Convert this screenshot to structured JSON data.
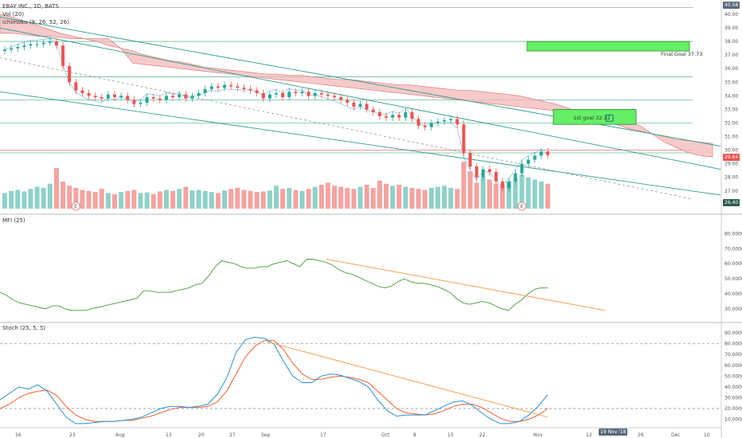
{
  "legend": {
    "symbol": "EBAY INC., 1D, BATS",
    "vol": "Vol (20)",
    "ichimoku": "Ichimoku (9, 26, 52, 26)",
    "mfi": "MFI (25)",
    "stoch": "Stoch (25, 5, 5)"
  },
  "annotations": {
    "final_goal": "Final Goal 37.73",
    "first_goal": "1st goal 32.32"
  },
  "tags": {
    "top_price": "40.58",
    "last_price": "29.64",
    "low_price": "26.40",
    "date_tag": "19 Nov '18"
  },
  "colors": {
    "up": "#26a69a",
    "down": "#ef5350",
    "cloud": "#f4b8b8",
    "goal_fill": "#66ee66",
    "trend_teal": "#2e9e8e",
    "trend_orange": "#f5a255",
    "mfi_line": "#4a9a3a",
    "stoch_k": "#2b8fd6",
    "stoch_d": "#f06030"
  },
  "chart_data": [
    {
      "type": "candlestick",
      "name": "price",
      "y_ticks": [
        "40.00",
        "39.00",
        "38.00",
        "37.00",
        "36.00",
        "35.00",
        "34.00",
        "33.00",
        "32.00",
        "31.00",
        "30.00",
        "29.00",
        "28.00",
        "27.00",
        "26.00"
      ],
      "ylim": [
        25.7,
        40.7
      ],
      "x_ticks": [
        "23",
        "Aug",
        "13",
        "20",
        "27",
        "Sep",
        "17",
        "Oct",
        "8",
        "15",
        "22",
        "Nov",
        "12",
        "26",
        "Dec",
        "10"
      ],
      "close": [
        37.4,
        37.5,
        37.6,
        37.7,
        37.8,
        37.8,
        37.9,
        38.0,
        37.7,
        36.2,
        35.0,
        34.4,
        34.2,
        34.0,
        33.9,
        33.8,
        34.1,
        33.9,
        34.0,
        33.7,
        33.4,
        33.5,
        33.9,
        33.8,
        33.7,
        34.0,
        33.9,
        34.1,
        33.8,
        34.0,
        34.2,
        34.5,
        34.7,
        34.6,
        34.8,
        34.7,
        34.6,
        34.5,
        34.4,
        34.2,
        33.8,
        34.1,
        34.2,
        33.9,
        34.3,
        34.2,
        34.3,
        34.0,
        34.2,
        34.1,
        34.0,
        33.9,
        33.7,
        33.5,
        33.2,
        33.4,
        33.0,
        32.8,
        32.5,
        32.4,
        32.6,
        32.4,
        32.8,
        32.3,
        31.8,
        31.7,
        32.0,
        32.1,
        32.2,
        32.3,
        31.9,
        29.8,
        28.8,
        28.0,
        28.6,
        28.4,
        27.7,
        27.2,
        27.7,
        28.3,
        29.0,
        29.3,
        29.6,
        29.9,
        29.64
      ],
      "volume": [
        30,
        34,
        36,
        33,
        38,
        42,
        40,
        48,
        78,
        52,
        44,
        40,
        36,
        34,
        32,
        38,
        30,
        28,
        32,
        34,
        36,
        30,
        31,
        28,
        33,
        36,
        34,
        38,
        42,
        35,
        36,
        34,
        32,
        30,
        35,
        38,
        40,
        36,
        34,
        32,
        33,
        35,
        44,
        38,
        40,
        36,
        34,
        38,
        42,
        46,
        50,
        44,
        42,
        40,
        38,
        42,
        46,
        40,
        54,
        48,
        44,
        46,
        42,
        40,
        38,
        36,
        40,
        42,
        44,
        40,
        38,
        90,
        72,
        50,
        60,
        56,
        48,
        46,
        52,
        58,
        66,
        60,
        56,
        52,
        48
      ],
      "ichimoku_cloud_top": [
        40.0,
        39.8,
        39.5,
        39.2,
        38.9,
        38.6,
        38.4,
        38.2,
        38.0,
        37.7,
        37.5,
        37.3,
        37.0,
        36.8,
        36.6,
        36.5,
        36.3,
        36.1,
        36.0,
        35.9,
        35.8,
        35.7,
        35.6,
        35.6,
        35.5,
        35.5,
        35.4,
        35.3,
        35.2,
        35.2,
        35.1,
        35.0,
        34.9,
        34.8,
        34.8,
        34.7,
        34.6,
        34.5,
        34.4,
        34.4,
        34.3,
        34.2,
        34.1,
        34.0,
        33.8,
        33.6,
        33.4,
        33.1,
        32.8,
        32.5,
        32.2,
        31.9,
        31.6,
        31.4,
        31.2,
        31.0,
        30.8,
        30.7,
        30.6,
        30.5
      ],
      "ichimoku_cloud_bottom": [
        38.6,
        38.6,
        38.5,
        38.4,
        38.4,
        38.3,
        38.2,
        38.2,
        38.2,
        38.2,
        37.5,
        36.4,
        36.3,
        36.2,
        36.1,
        36.0,
        35.9,
        35.8,
        35.7,
        35.6,
        35.5,
        35.4,
        35.3,
        35.2,
        35.1,
        35.0,
        34.9,
        34.8,
        34.7,
        34.6,
        34.5,
        34.4,
        34.3,
        34.2,
        34.1,
        34.0,
        33.9,
        33.8,
        33.7,
        33.6,
        33.5,
        33.4,
        33.3,
        33.2,
        33.1,
        33.0,
        32.9,
        32.8,
        32.7,
        32.6,
        32.5,
        32.4,
        32.2,
        31.8,
        31.2,
        30.6,
        30.2,
        29.8,
        29.6,
        29.5
      ],
      "final_goal": 37.73,
      "first_goal": 32.32,
      "horizontal_levels": [
        38.0,
        35.4,
        33.7,
        32.0,
        30.0,
        29.8
      ]
    },
    {
      "type": "line",
      "name": "MFI (25)",
      "y_ticks": [
        "80.0000",
        "70.0000",
        "60.0000",
        "50.0000",
        "40.0000",
        "30.0000"
      ],
      "ylim": [
        22,
        86
      ],
      "values": [
        41,
        39,
        36,
        34,
        33,
        32,
        31,
        30,
        32,
        32,
        30,
        29,
        29,
        29,
        30,
        31,
        32,
        33,
        34,
        35,
        36,
        37,
        42,
        42,
        41,
        41,
        41,
        42,
        43,
        44,
        46,
        47,
        52,
        58,
        62,
        61,
        60,
        58,
        57,
        57,
        58,
        58,
        60,
        61,
        62,
        60,
        58,
        63,
        63,
        62,
        61,
        59,
        56,
        54,
        53,
        51,
        49,
        47,
        45,
        44,
        45,
        48,
        50,
        48,
        47,
        47,
        46,
        45,
        43,
        41,
        37,
        34,
        33,
        34,
        35,
        34,
        32,
        30,
        29,
        33,
        36,
        40,
        43,
        44,
        44
      ]
    },
    {
      "type": "line",
      "name": "Stoch (25, 5, 5)",
      "y_ticks": [
        "90.0000",
        "80.0000",
        "70.0000",
        "60.0000",
        "50.0000",
        "40.0000",
        "30.0000",
        "20.0000",
        "10.0000"
      ],
      "ylim": [
        3,
        96
      ],
      "k_values": [
        28,
        34,
        40,
        38,
        42,
        36,
        24,
        12,
        6,
        6,
        7,
        8,
        8,
        9,
        10,
        12,
        16,
        20,
        22,
        22,
        21,
        22,
        24,
        33,
        48,
        72,
        84,
        86,
        85,
        80,
        64,
        50,
        44,
        44,
        50,
        52,
        51,
        48,
        45,
        40,
        28,
        18,
        13,
        14,
        14,
        14,
        18,
        22,
        26,
        27,
        23,
        16,
        10,
        6,
        6,
        8,
        14,
        22,
        33
      ],
      "d_values": [
        20,
        24,
        30,
        34,
        36,
        37,
        32,
        22,
        14,
        10,
        8,
        8,
        8,
        9,
        9,
        11,
        13,
        16,
        19,
        21,
        21,
        21,
        22,
        26,
        36,
        52,
        68,
        78,
        83,
        83,
        75,
        62,
        52,
        47,
        47,
        49,
        50,
        49,
        47,
        44,
        36,
        28,
        20,
        16,
        15,
        14,
        15,
        18,
        22,
        24,
        24,
        21,
        16,
        11,
        8,
        8,
        10,
        14,
        20
      ]
    }
  ]
}
